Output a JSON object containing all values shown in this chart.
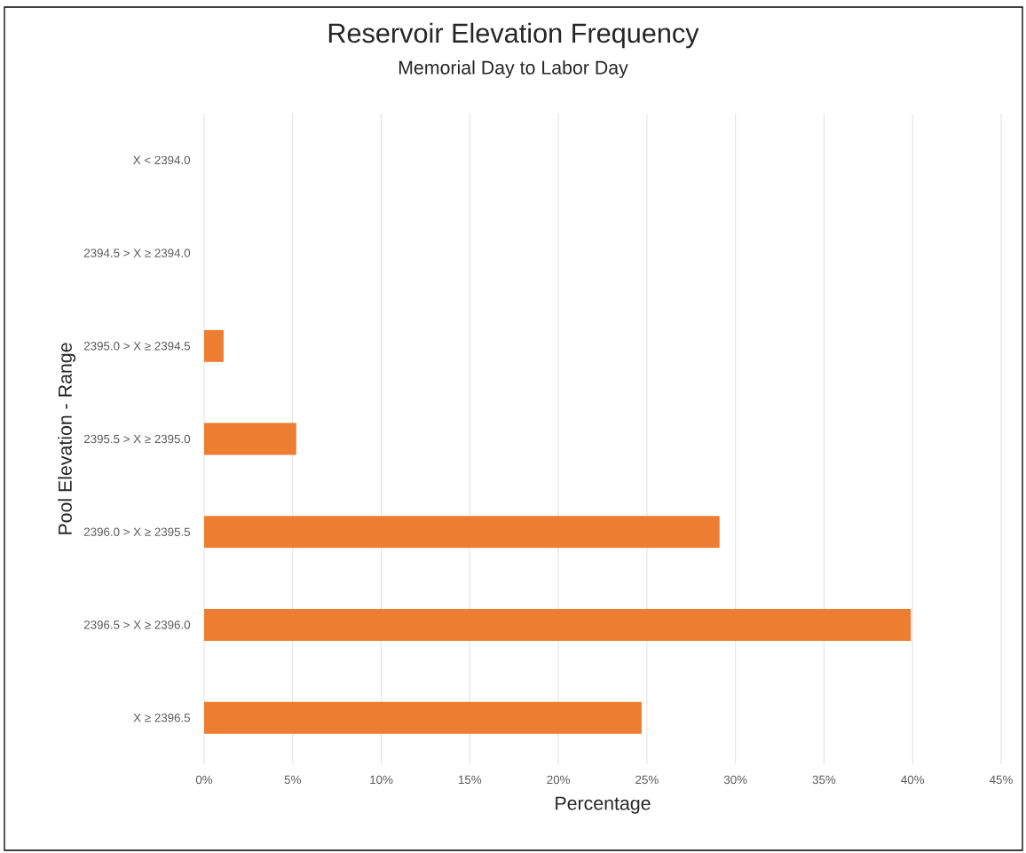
{
  "chart_data": {
    "type": "bar",
    "orientation": "horizontal",
    "title": "Reservoir Elevation Frequency",
    "subtitle": "Memorial Day to Labor Day",
    "xlabel": "Percentage",
    "ylabel": "Pool Elevation - Range",
    "categories": [
      "X < 2394.0",
      "2394.5  > X ≥ 2394.0",
      "2395.0  > X ≥ 2394.5",
      "2395.5  > X ≥ 2395.0",
      "2396.0  > X ≥ 2395.5",
      "2396.5  > X ≥ 2396.0",
      "X ≥ 2396.5"
    ],
    "values": [
      0,
      0,
      1.1,
      5.2,
      29.1,
      39.9,
      24.7
    ],
    "color": "#ed7d31",
    "xlim": [
      0,
      45
    ],
    "xticks": [
      {
        "value": 0,
        "label": "0%"
      },
      {
        "value": 5,
        "label": "5%"
      },
      {
        "value": 10,
        "label": "10%"
      },
      {
        "value": 15,
        "label": "15%"
      },
      {
        "value": 20,
        "label": "20%"
      },
      {
        "value": 25,
        "label": "25%"
      },
      {
        "value": 30,
        "label": "30%"
      },
      {
        "value": 35,
        "label": "35%"
      },
      {
        "value": 40,
        "label": "40%"
      },
      {
        "value": 45,
        "label": "45%"
      }
    ],
    "grid": "x"
  }
}
